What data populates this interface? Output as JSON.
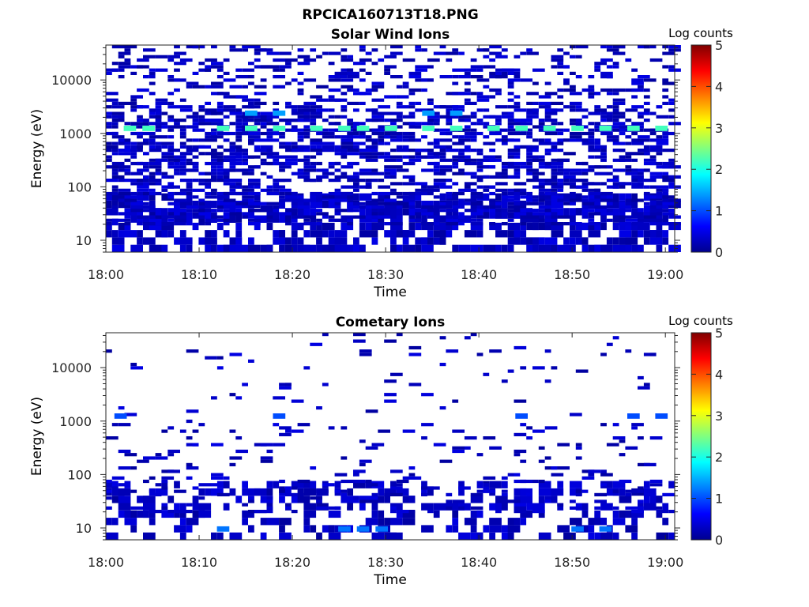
{
  "figure": {
    "title": "RPCICA160713T18.PNG"
  },
  "chart_data": [
    {
      "type": "heatmap",
      "title": "Solar Wind Ions",
      "xlabel": "Time",
      "ylabel": "Energy (eV)",
      "x_ticks": [
        "18:00",
        "18:10",
        "18:20",
        "18:30",
        "18:40",
        "18:50",
        "19:00"
      ],
      "x_range": [
        "18:00",
        "19:01"
      ],
      "y_scale": "log",
      "y_ticks": [
        "10",
        "100",
        "1000",
        "10000"
      ],
      "y_range": [
        6,
        45000
      ],
      "colorbar": {
        "label": "Log counts",
        "range": [
          0,
          5
        ],
        "ticks": [
          "0",
          "1",
          "2",
          "3",
          "4",
          "5"
        ],
        "colormap": "jet"
      },
      "features": [
        {
          "energy_eV": 1300,
          "log_counts": 2.2,
          "times": [
            "18:02",
            "18:04",
            "18:12",
            "18:15",
            "18:18",
            "18:22",
            "18:25",
            "18:27",
            "18:30",
            "18:34",
            "18:37",
            "18:41",
            "18:44",
            "18:47",
            "18:50",
            "18:53",
            "18:56",
            "18:59"
          ]
        },
        {
          "energy_eV": 2500,
          "log_counts": 1.4,
          "times": [
            "18:15",
            "18:18",
            "18:34",
            "18:37"
          ]
        },
        {
          "description_band": "low-energy",
          "energy_range_eV": [
            6,
            20
          ],
          "log_counts": 0.3
        }
      ]
    },
    {
      "type": "heatmap",
      "title": "Cometary Ions",
      "xlabel": "Time",
      "ylabel": "Energy (eV)",
      "x_ticks": [
        "18:00",
        "18:10",
        "18:20",
        "18:30",
        "18:40",
        "18:50",
        "19:00"
      ],
      "x_range": [
        "18:00",
        "19:01"
      ],
      "y_scale": "log",
      "y_ticks": [
        "10",
        "100",
        "1000",
        "10000"
      ],
      "y_range": [
        6,
        45000
      ],
      "colorbar": {
        "label": "Log counts",
        "range": [
          0,
          5
        ],
        "ticks": [
          "0",
          "1",
          "2",
          "3",
          "4",
          "5"
        ],
        "colormap": "jet"
      },
      "features": [
        {
          "energy_eV": 1300,
          "log_counts": 1.0,
          "times": [
            "18:01",
            "18:18",
            "18:44",
            "18:56",
            "18:59"
          ]
        },
        {
          "energy_eV": 10,
          "log_counts": 1.2,
          "times": [
            "18:12",
            "18:25",
            "18:27",
            "18:29",
            "18:50",
            "18:53"
          ]
        },
        {
          "description_band": "low-energy",
          "energy_range_eV": [
            6,
            25
          ],
          "log_counts": 0.5
        }
      ]
    }
  ]
}
